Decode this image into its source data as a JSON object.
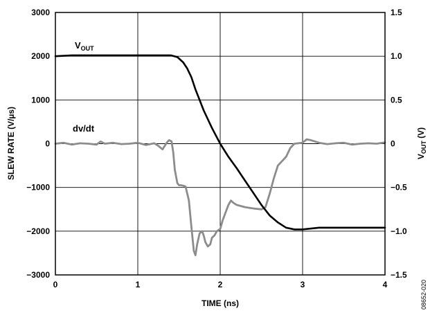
{
  "chart_data": {
    "type": "line",
    "xlabel": "TIME (ns)",
    "ylabel": "SLEW RATE (V/µs)",
    "y2label": {
      "main": "V",
      "sub": "OUT",
      "rest": " (V)"
    },
    "xlim": [
      0,
      4
    ],
    "ylim": [
      -3000,
      3000
    ],
    "y2lim": [
      -1.5,
      1.5
    ],
    "x_ticks": [
      "0",
      "1",
      "2",
      "3",
      "4"
    ],
    "y_ticks": [
      "3000",
      "2000",
      "1000",
      "0",
      "−1000",
      "−2000",
      "−3000"
    ],
    "y2_ticks": [
      "1.5",
      "1.0",
      "0.5",
      "0",
      "−0.5",
      "−1.0",
      "−1.5"
    ],
    "grid": true,
    "figure_id": "08652-020",
    "series": [
      {
        "name": "dv/dt",
        "axis": "left",
        "color": "#8c8c8c",
        "label": "dv/dt",
        "x": [
          0,
          0.1,
          0.2,
          0.3,
          0.4,
          0.5,
          0.55,
          0.6,
          0.7,
          0.8,
          0.9,
          1.0,
          1.1,
          1.2,
          1.25,
          1.3,
          1.35,
          1.38,
          1.41,
          1.43,
          1.45,
          1.48,
          1.5,
          1.52,
          1.55,
          1.58,
          1.62,
          1.65,
          1.68,
          1.7,
          1.72,
          1.75,
          1.78,
          1.8,
          1.82,
          1.85,
          1.88,
          1.9,
          1.93,
          1.96,
          2.0,
          2.03,
          2.06,
          2.1,
          2.13,
          2.16,
          2.2,
          2.3,
          2.4,
          2.5,
          2.55,
          2.6,
          2.65,
          2.7,
          2.8,
          2.85,
          2.9,
          3.0,
          3.05,
          3.1,
          3.2,
          3.3,
          3.4,
          3.5,
          3.6,
          3.7,
          3.8,
          3.9,
          4.0
        ],
        "y": [
          0,
          20,
          -20,
          10,
          0,
          -20,
          50,
          0,
          20,
          -10,
          0,
          20,
          -30,
          10,
          -50,
          -130,
          20,
          80,
          50,
          -200,
          -600,
          -900,
          -950,
          -950,
          -960,
          -980,
          -1300,
          -1900,
          -2450,
          -2550,
          -2300,
          -2050,
          -2000,
          -2100,
          -2250,
          -2350,
          -2300,
          -2150,
          -2100,
          -2000,
          -1950,
          -1750,
          -1600,
          -1400,
          -1300,
          -1350,
          -1400,
          -1450,
          -1480,
          -1500,
          -1450,
          -1150,
          -800,
          -500,
          -300,
          -100,
          0,
          20,
          100,
          80,
          20,
          -10,
          10,
          20,
          -20,
          0,
          10,
          0,
          30
        ]
      },
      {
        "name": "VOUT",
        "axis": "right",
        "color": "#000000",
        "label": {
          "main": "V",
          "sub": "OUT"
        },
        "x": [
          0,
          0.2,
          0.4,
          0.6,
          0.8,
          1.0,
          1.2,
          1.4,
          1.48,
          1.55,
          1.6,
          1.65,
          1.7,
          1.8,
          1.9,
          2.0,
          2.1,
          2.2,
          2.3,
          2.4,
          2.5,
          2.6,
          2.7,
          2.8,
          2.9,
          3.0,
          3.2,
          3.5,
          4.0
        ],
        "y": [
          1.0,
          1.01,
          1.01,
          1.01,
          1.01,
          1.01,
          1.01,
          1.01,
          0.99,
          0.93,
          0.86,
          0.76,
          0.62,
          0.38,
          0.18,
          0.0,
          -0.15,
          -0.28,
          -0.42,
          -0.56,
          -0.7,
          -0.82,
          -0.9,
          -0.96,
          -0.98,
          -0.98,
          -0.96,
          -0.96,
          -0.96
        ]
      }
    ]
  }
}
